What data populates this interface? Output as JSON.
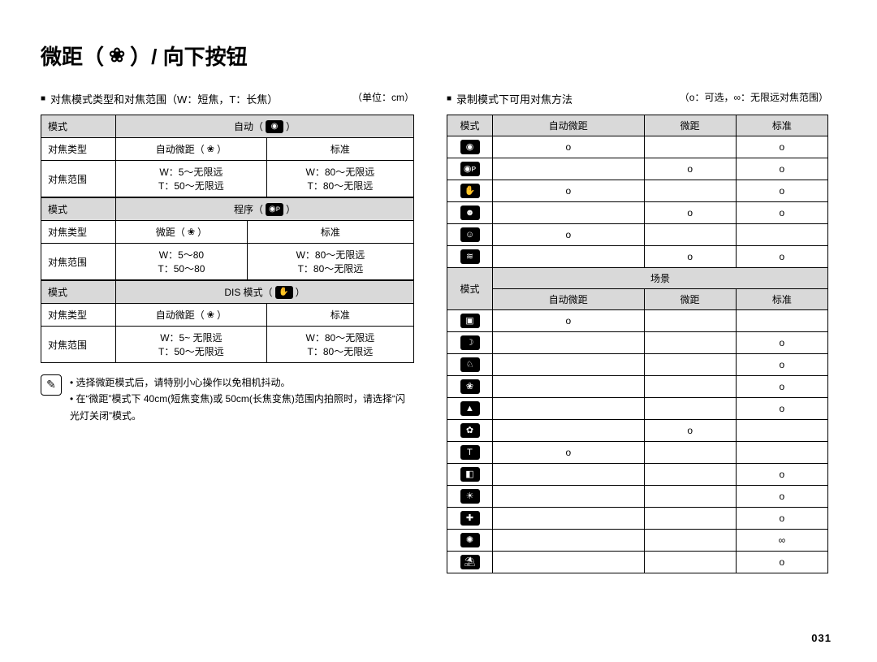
{
  "title": {
    "prefix": "微距（",
    "suffix": "）/ 向下按钮",
    "icon": "❀"
  },
  "left": {
    "heading": "对焦模式类型和对焦范围（W：短焦，T：长焦）",
    "unit": "（单位：cm）",
    "tables": [
      {
        "mode_label": "模式",
        "mode_value_prefix": "自动（",
        "mode_value_suffix": "）",
        "mode_icon": "◉",
        "type_label": "对焦类型",
        "type_col1_prefix": "自动微距（",
        "type_col1_icon": "❀",
        "type_col1_suffix": "）",
        "type_col2": "标准",
        "range_label": "对焦范围",
        "range_w1": "W：5～无限远",
        "range_t1": "T：50～无限远",
        "range_w2": "W：80～无限远",
        "range_t2": "T：80～无限远"
      },
      {
        "mode_label": "模式",
        "mode_value_prefix": "程序（",
        "mode_value_suffix": "）",
        "mode_icon": "◉ᴘ",
        "type_label": "对焦类型",
        "type_col1_prefix": "微距（",
        "type_col1_icon": "❀",
        "type_col1_suffix": "）",
        "type_col2": "标准",
        "range_label": "对焦范围",
        "range_w1": "W：5～80",
        "range_t1": "T：50～80",
        "range_w2": "W：80～无限远",
        "range_t2": "T：80～无限远"
      },
      {
        "mode_label": "模式",
        "mode_value_prefix": "DIS 模式（",
        "mode_value_suffix": "）",
        "mode_icon": "✋",
        "type_label": "对焦类型",
        "type_col1_prefix": "自动微距（",
        "type_col1_icon": "❀",
        "type_col1_suffix": "）",
        "type_col2": "标准",
        "range_label": "对焦范围",
        "range_w1": "W：5~ 无限远",
        "range_t1": "T：50～无限远",
        "range_w2": "W：80～无限远",
        "range_t2": "T：80～无限远"
      }
    ],
    "notes": [
      "选择微距模式后，请特别小心操作以免相机抖动。",
      "在“微距”模式下 40cm(短焦变焦)或 50cm(长焦变焦)范围内拍照时，请选择“闪光灯关闭”模式。"
    ],
    "note_icon": "✎"
  },
  "right": {
    "heading": "录制模式下可用对焦方法",
    "legend": "（o：可选，∞：无限远对焦范围）",
    "head": {
      "mode": "模式",
      "auto_macro": "自动微距",
      "macro": "微距",
      "standard": "标准"
    },
    "rows_top": [
      {
        "icon": "◉",
        "a": "o",
        "m": "",
        "s": "o"
      },
      {
        "icon": "◉ᴘ",
        "a": "",
        "m": "o",
        "s": "o"
      },
      {
        "icon": "✋",
        "a": "o",
        "m": "",
        "s": "o"
      },
      {
        "icon": "☻",
        "a": "",
        "m": "o",
        "s": "o"
      },
      {
        "icon": "☺",
        "a": "o",
        "m": "",
        "s": ""
      },
      {
        "icon": "≋",
        "a": "",
        "m": "o",
        "s": "o"
      }
    ],
    "scene_label": "场景",
    "scene_head": {
      "mode": "模式",
      "auto_macro": "自动微距",
      "macro": "微距",
      "standard": "标准"
    },
    "rows_scene": [
      {
        "icon": "▣",
        "a": "o",
        "m": "",
        "s": ""
      },
      {
        "icon": "☽",
        "a": "",
        "m": "",
        "s": "o"
      },
      {
        "icon": "♘",
        "a": "",
        "m": "",
        "s": "o"
      },
      {
        "icon": "❀",
        "a": "",
        "m": "",
        "s": "o"
      },
      {
        "icon": "▲",
        "a": "",
        "m": "",
        "s": "o"
      },
      {
        "icon": "✿",
        "a": "",
        "m": "o",
        "s": ""
      },
      {
        "icon": "T",
        "a": "o",
        "m": "",
        "s": ""
      },
      {
        "icon": "◧",
        "a": "",
        "m": "",
        "s": "o"
      },
      {
        "icon": "☀",
        "a": "",
        "m": "",
        "s": "o"
      },
      {
        "icon": "✚",
        "a": "",
        "m": "",
        "s": "o"
      },
      {
        "icon": "✺",
        "a": "",
        "m": "",
        "s": "∞"
      },
      {
        "icon": "⛱",
        "a": "",
        "m": "",
        "s": "o"
      }
    ]
  },
  "page_number": "031"
}
